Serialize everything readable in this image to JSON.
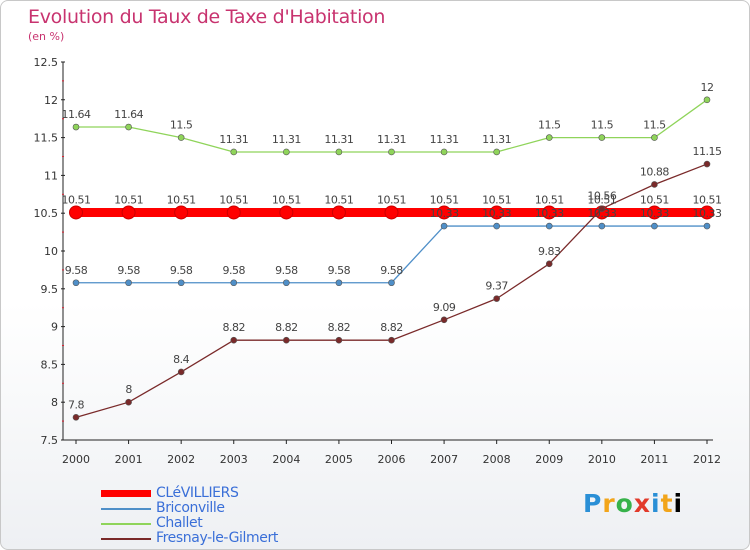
{
  "title": "Evolution du Taux de Taxe d'Habitation",
  "unit_label": "(en %)",
  "brand": "Proxiti",
  "chart_data": {
    "type": "line",
    "title": "Evolution du Taux de Taxe d'Habitation",
    "ylabel": "(en %)",
    "xlabel": "",
    "ylim": [
      7.5,
      12.5
    ],
    "yticks": [
      "7.5",
      "8",
      "8.5",
      "9",
      "9.5",
      "10",
      "10.5",
      "11",
      "11.5",
      "12",
      "12.5"
    ],
    "grid": false,
    "legend_position": "bottom-left",
    "categories": [
      "2000",
      "2001",
      "2002",
      "2003",
      "2004",
      "2005",
      "2006",
      "2007",
      "2008",
      "2009",
      "2010",
      "2011",
      "2012"
    ],
    "series": [
      {
        "name": "CLéVILLIERS",
        "color": "#ff0000",
        "values": [
          10.51,
          10.51,
          10.51,
          10.51,
          10.51,
          10.51,
          10.51,
          10.51,
          10.51,
          10.51,
          10.51,
          10.51,
          10.51
        ],
        "labels": [
          "10.51",
          "10.51",
          "10.51",
          "10.51",
          "10.51",
          "10.51",
          "10.51",
          "10.51",
          "10.51",
          "10.51",
          "10.51",
          "10.51",
          "10.51"
        ]
      },
      {
        "name": "Briconville",
        "color": "#4f8fc8",
        "values": [
          9.58,
          9.58,
          9.58,
          9.58,
          9.58,
          9.58,
          9.58,
          10.33,
          10.33,
          10.33,
          10.33,
          10.33,
          10.33
        ],
        "labels": [
          "9.58",
          "9.58",
          "9.58",
          "9.58",
          "9.58",
          "9.58",
          "9.58",
          "10.33",
          "10.33",
          "10.33",
          "10.33",
          "10.33",
          "10.33"
        ]
      },
      {
        "name": "Challet",
        "color": "#8fd45a",
        "values": [
          11.64,
          11.64,
          11.5,
          11.31,
          11.31,
          11.31,
          11.31,
          11.31,
          11.31,
          11.5,
          11.5,
          11.5,
          12
        ],
        "labels": [
          "11.64",
          "11.64",
          "11.5",
          "11.31",
          "11.31",
          "11.31",
          "11.31",
          "11.31",
          "11.31",
          "11.5",
          "11.5",
          "11.5",
          "12"
        ]
      },
      {
        "name": "Fresnay-le-Gilmert",
        "color": "#7a2a2a",
        "values": [
          7.8,
          8,
          8.4,
          8.82,
          8.82,
          8.82,
          8.82,
          9.09,
          9.37,
          9.83,
          10.56,
          10.88,
          11.15
        ],
        "labels": [
          "7.8",
          "8",
          "8.4",
          "8.82",
          "8.82",
          "8.82",
          "8.82",
          "9.09",
          "9.37",
          "9.83",
          "10.56",
          "10.88",
          "11.15"
        ]
      }
    ]
  }
}
